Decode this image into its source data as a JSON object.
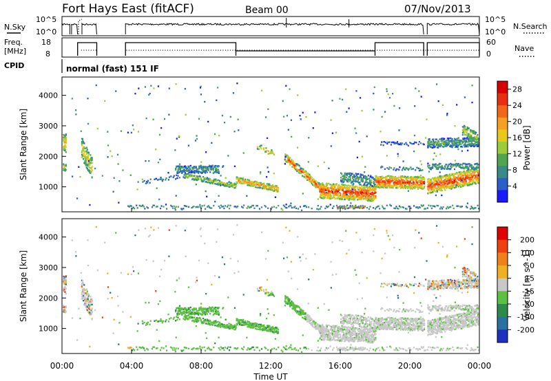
{
  "header": {
    "station": "Fort Hays East (fitACF)",
    "beam": "Beam 00",
    "date": "07/Nov/2013"
  },
  "status_panels": {
    "nsky_label": "N.Sky",
    "nsky_ticks": [
      "10^5",
      "10^0"
    ],
    "nsearch_label": "N.Search",
    "nsearch_ticks": [
      "10^5",
      "10^0"
    ],
    "freq_label_1": "Freq.",
    "freq_label_2": "[MHz]",
    "freq_ticks": [
      "18",
      "8"
    ],
    "nave_label": "Nave",
    "nave_ticks": [
      "60",
      "0"
    ],
    "cpid_label": "CPID",
    "cpid_text": "normal (fast) 151 IF"
  },
  "chart_data": [
    {
      "type": "heatmap",
      "name": "power",
      "ylabel": "Slant Range [km]",
      "xlabel": "Time UT",
      "x_ticks": [
        "00:00",
        "04:00",
        "08:00",
        "12:00",
        "16:00",
        "20:00",
        "00:00"
      ],
      "y_ticks": [
        "1000",
        "2000",
        "3000",
        "4000"
      ],
      "ylim_km": [
        180,
        4600
      ],
      "xlim_hours": [
        0,
        24
      ],
      "colorbar": {
        "label": "Power [dB]",
        "ticks": [
          "4",
          "8",
          "12",
          "16",
          "20",
          "24",
          "28"
        ],
        "colors": [
          "#1a1aff",
          "#2a60c8",
          "#3a8a8a",
          "#4fa64f",
          "#9ccc3a",
          "#e8c81a",
          "#f5a020",
          "#f06818",
          "#e83010",
          "#d80000"
        ]
      }
    },
    {
      "type": "heatmap",
      "name": "velocity",
      "ylabel": "Slant Range [km]",
      "xlabel": "Time UT",
      "x_ticks": [
        "00:00",
        "04:00",
        "08:00",
        "12:00",
        "16:00",
        "20:00",
        "00:00"
      ],
      "y_ticks": [
        "1000",
        "2000",
        "3000",
        "4000"
      ],
      "ylim_km": [
        180,
        4600
      ],
      "xlim_hours": [
        0,
        24
      ],
      "colorbar": {
        "label": "Velocity [m s^-1]",
        "ticks": [
          "200",
          "100",
          "50",
          "15",
          "-15",
          "-50",
          "-100",
          "-200"
        ],
        "colors": [
          "#2030c0",
          "#2a70a0",
          "#2e8a4a",
          "#5cc040",
          "#c8c8c8",
          "#f0b020",
          "#f08018",
          "#f04010",
          "#e00000"
        ]
      }
    }
  ],
  "axes": {
    "time_label": "Time UT"
  }
}
